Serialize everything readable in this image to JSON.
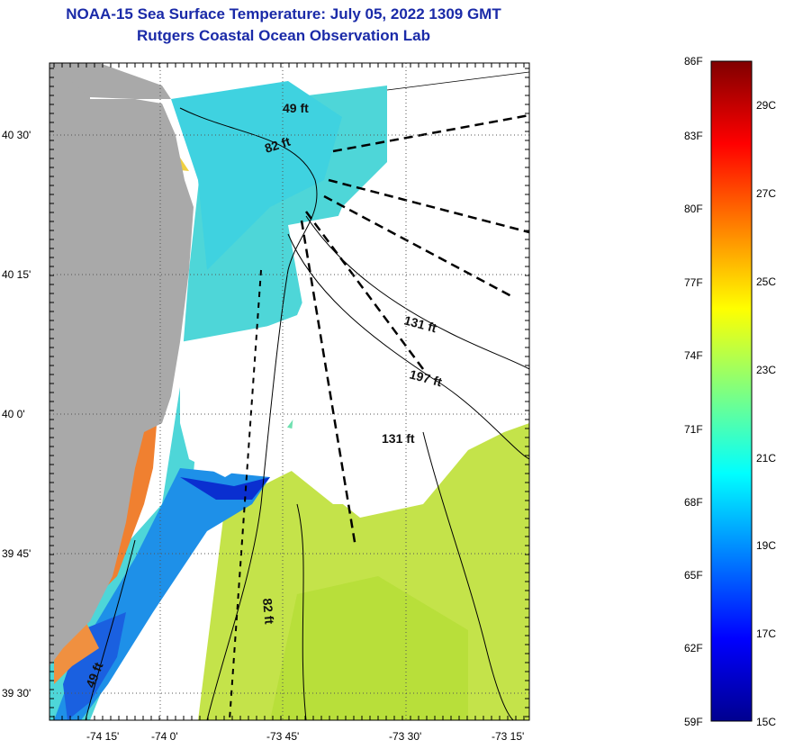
{
  "header": {
    "title": "NOAA-15 Sea Surface Temperature:  July 05, 2022 1309 GMT",
    "subtitle": "Rutgers Coastal Ocean Observation Lab"
  },
  "map": {
    "lon_ticks": [
      "-74 15'",
      "-74 0'",
      "-73 45'",
      "-73 30'",
      "-73 15'"
    ],
    "lat_ticks": [
      "40 30'",
      "40 15'",
      "40 0'",
      "39 45'",
      "39 30'"
    ],
    "depth_labels": [
      "49 ft",
      "82 ft",
      "131 ft",
      "197 ft",
      "131 ft",
      "82 ft",
      "49 ft"
    ],
    "colors": {
      "land": "#a9a9a9",
      "cloud": "#ffffff",
      "warm_water": "#c8e83a",
      "cool_water": "#3fd0e8",
      "cold_water": "#1a5ad8"
    }
  },
  "colorbar": {
    "f_labels": [
      "86F",
      "83F",
      "80F",
      "77F",
      "74F",
      "71F",
      "68F",
      "65F",
      "62F",
      "59F"
    ],
    "c_labels": [
      "29C",
      "27C",
      "25C",
      "23C",
      "21C",
      "19C",
      "17C",
      "15C"
    ],
    "f_range": [
      59,
      86
    ]
  }
}
